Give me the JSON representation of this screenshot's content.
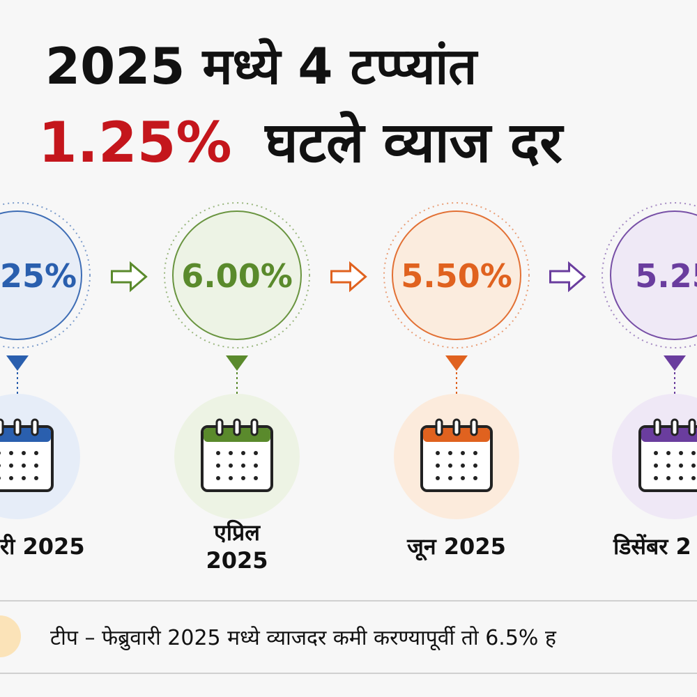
{
  "header": {
    "line1": "2025 मध्ये 4 टप्प्यांत",
    "highlight": "1.25%",
    "line2": "घटले व्याज दर"
  },
  "steps": [
    {
      "rate": "25%",
      "date": [
        "री 2025"
      ],
      "color": "#2a5fae",
      "tint": "#e6edf8"
    },
    {
      "rate": "6.00%",
      "date": [
        "एप्रिल",
        "2025"
      ],
      "color": "#5a8a2c",
      "tint": "#edf3e4"
    },
    {
      "rate": "5.50%",
      "date": [
        "जून 2025"
      ],
      "color": "#e0621f",
      "tint": "#fcebdc"
    },
    {
      "rate": "5.25",
      "date": [
        "डिसेंबर 2"
      ],
      "color": "#6a3d9e",
      "tint": "#efe8f6"
    }
  ],
  "note": "टीप – फेब्रुवारी 2025 मध्ये व्याजदर कमी करण्यापूर्वी तो 6.5% ह"
}
